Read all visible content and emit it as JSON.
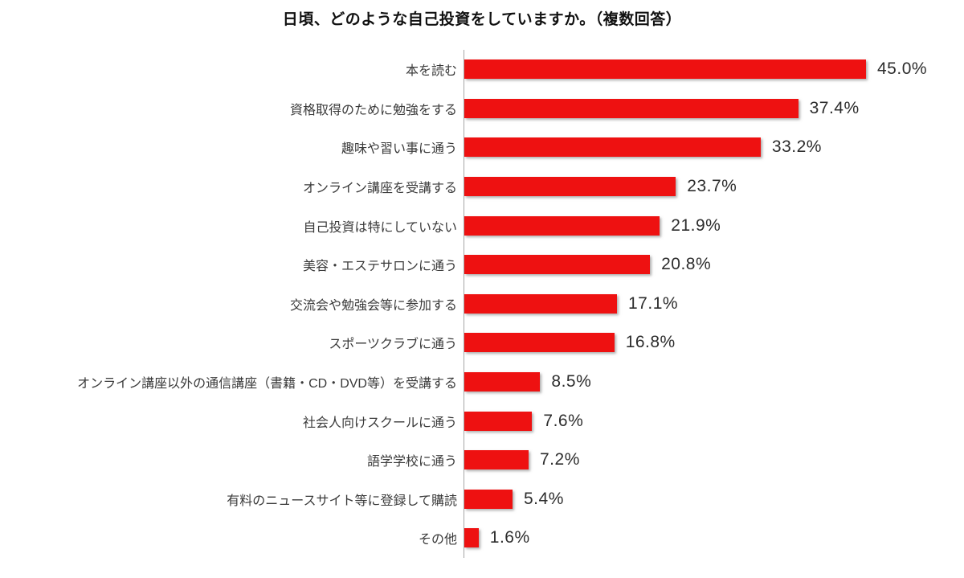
{
  "chart_data": {
    "type": "bar",
    "orientation": "horizontal",
    "title": "日頃、どのような自己投資をしていますか。（複数回答）",
    "categories": [
      "本を読む",
      "資格取得のために勉強をする",
      "趣味や習い事に通う",
      "オンライン講座を受講する",
      "自己投資は特にしていない",
      "美容・エステサロンに通う",
      "交流会や勉強会等に参加する",
      "スポーツクラブに通う",
      "オンライン講座以外の通信講座（書籍・CD・DVD等）を受講する",
      "社会人向けスクールに通う",
      "語学学校に通う",
      "有料のニュースサイト等に登録して購読",
      "その他"
    ],
    "values": [
      45.0,
      37.4,
      33.2,
      23.7,
      21.9,
      20.8,
      17.1,
      16.8,
      8.5,
      7.6,
      7.2,
      5.4,
      1.6
    ],
    "value_labels": [
      "45.0%",
      "37.4%",
      "33.2%",
      "23.7%",
      "21.9%",
      "20.8%",
      "17.1%",
      "16.8%",
      "8.5%",
      "7.6%",
      "7.2%",
      "5.4%",
      "1.6%"
    ],
    "xlabel": "",
    "ylabel": "",
    "xlim": [
      0,
      45
    ],
    "grid": false,
    "legend": false,
    "data_labels_position": "outside-end",
    "bar_color": "#ee1111",
    "axis_line_color": "#a6a6a6",
    "label_color": "#3a3a3a",
    "value_color": "#2d2d2d",
    "title_color": "#111111",
    "background_color": "#ffffff"
  }
}
